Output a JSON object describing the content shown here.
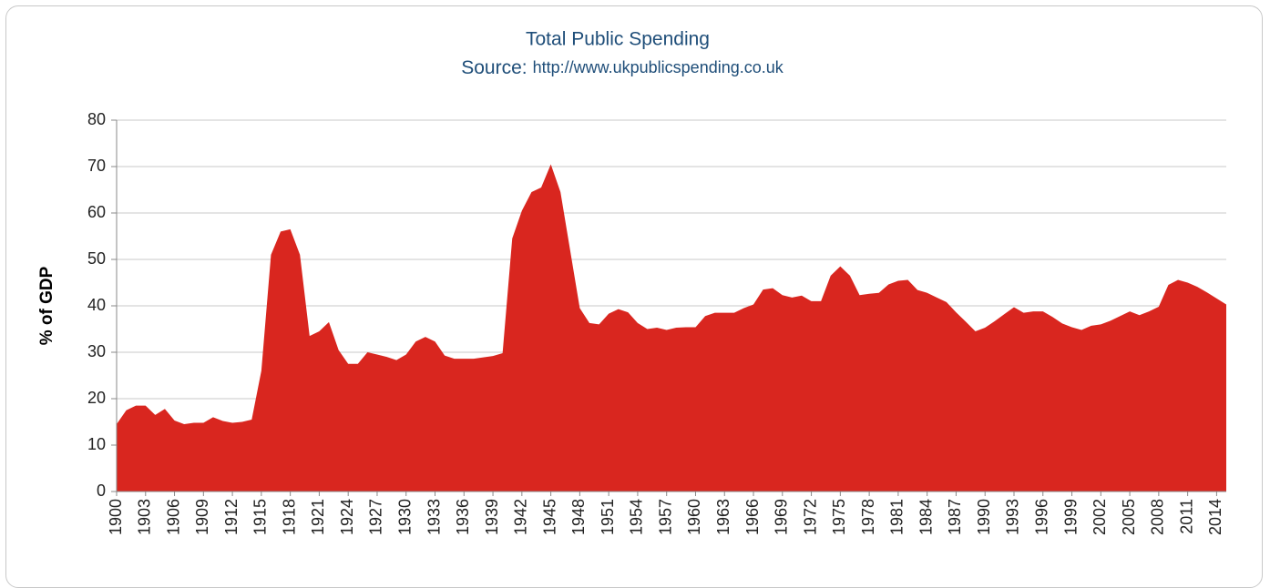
{
  "chart_data": {
    "type": "area",
    "title": "Total Public Spending",
    "subtitle": "Source:",
    "source_url": "http://www.ukpublicspending.co.uk",
    "y_label": "% of GDP",
    "color": "#d9261f",
    "grid": true,
    "xlim": [
      1900,
      2015
    ],
    "xticks": [
      1900,
      1903,
      1906,
      1909,
      1912,
      1915,
      1918,
      1921,
      1924,
      1927,
      1930,
      1933,
      1936,
      1939,
      1942,
      1945,
      1948,
      1951,
      1954,
      1957,
      1960,
      1963,
      1966,
      1969,
      1972,
      1975,
      1978,
      1981,
      1984,
      1987,
      1990,
      1993,
      1996,
      1999,
      2002,
      2005,
      2008,
      2011,
      2014
    ],
    "ylim": [
      0,
      80
    ],
    "yticks": [
      0,
      10,
      20,
      30,
      40,
      50,
      60,
      70,
      80
    ],
    "x": [
      1900,
      1901,
      1902,
      1903,
      1904,
      1905,
      1906,
      1907,
      1908,
      1909,
      1910,
      1911,
      1912,
      1913,
      1914,
      1915,
      1916,
      1917,
      1918,
      1919,
      1920,
      1921,
      1922,
      1923,
      1924,
      1925,
      1926,
      1927,
      1928,
      1929,
      1930,
      1931,
      1932,
      1933,
      1934,
      1935,
      1936,
      1937,
      1938,
      1939,
      1940,
      1941,
      1942,
      1943,
      1944,
      1945,
      1946,
      1947,
      1948,
      1949,
      1950,
      1951,
      1952,
      1953,
      1954,
      1955,
      1956,
      1957,
      1958,
      1959,
      1960,
      1961,
      1962,
      1963,
      1964,
      1965,
      1966,
      1967,
      1968,
      1969,
      1970,
      1971,
      1972,
      1973,
      1974,
      1975,
      1976,
      1977,
      1978,
      1979,
      1980,
      1981,
      1982,
      1983,
      1984,
      1985,
      1986,
      1987,
      1988,
      1989,
      1990,
      1991,
      1992,
      1993,
      1994,
      1995,
      1996,
      1997,
      1998,
      1999,
      2000,
      2001,
      2002,
      2003,
      2004,
      2005,
      2006,
      2007,
      2008,
      2009,
      2010,
      2011,
      2012,
      2013,
      2014,
      2015
    ],
    "values": [
      14.5,
      17.5,
      18.5,
      18.5,
      16.5,
      17.8,
      15.3,
      14.5,
      14.8,
      14.8,
      16,
      15.2,
      14.8,
      15,
      15.5,
      26,
      51,
      56,
      56.5,
      51,
      33.5,
      34.5,
      36.5,
      30.5,
      27.5,
      27.5,
      30,
      29.5,
      29,
      28.3,
      29.5,
      32.3,
      33.3,
      32.3,
      29.3,
      28.6,
      28.6,
      28.6,
      28.9,
      29.2,
      29.8,
      54.5,
      60.5,
      64.5,
      65.5,
      70.5,
      64.5,
      52,
      39.5,
      36.3,
      36,
      38.3,
      39.3,
      38.6,
      36.3,
      35,
      35.3,
      34.8,
      35.3,
      35.4,
      35.4,
      37.8,
      38.5,
      38.5,
      38.5,
      39.5,
      40.3,
      43.5,
      43.8,
      42.3,
      41.8,
      42.2,
      41,
      41,
      46.5,
      48.5,
      46.5,
      42.3,
      42.6,
      42.8,
      44.6,
      45.4,
      45.6,
      43.4,
      42.8,
      41.8,
      40.8,
      38.6,
      36.6,
      34.5,
      35.3,
      36.7,
      38.2,
      39.7,
      38.5,
      38.8,
      38.8,
      37.6,
      36.2,
      35.4,
      34.8,
      35.7,
      36,
      36.8,
      37.8,
      38.8,
      38,
      38.8,
      39.8,
      44.5,
      45.6,
      45,
      44.1,
      42.9,
      41.6,
      40.3
    ]
  }
}
